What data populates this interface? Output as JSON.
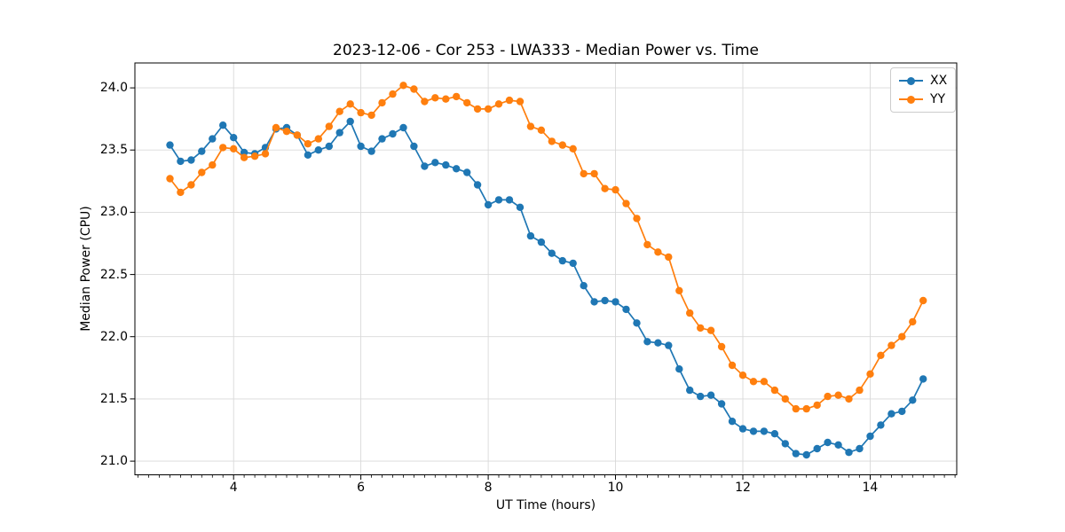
{
  "figure": {
    "background": "#ffffff",
    "text_color": "#000000",
    "grid_color": "#d9d9d9",
    "spine_color": "#000000"
  },
  "chart_data": {
    "type": "line",
    "title": "2023-12-06 - Cor 253 - LWA333 - Median Power vs. Time",
    "xlabel": "UT Time (hours)",
    "ylabel": "Median Power (CPU)",
    "xlim": [
      2.45,
      15.36
    ],
    "ylim": [
      20.89,
      24.2
    ],
    "xticks": [
      4,
      6,
      8,
      10,
      12,
      14
    ],
    "xtick_labels": [
      "4",
      "6",
      "8",
      "10",
      "12",
      "14"
    ],
    "yticks": [
      21.0,
      21.5,
      22.0,
      22.5,
      23.0,
      23.5,
      24.0
    ],
    "ytick_labels": [
      "21.0",
      "21.5",
      "22.0",
      "22.5",
      "23.0",
      "23.5",
      "24.0"
    ],
    "x_minor_step": 0.1666667,
    "grid": true,
    "legend_position": "upper right",
    "x_start": 3.0,
    "x_step": 0.1666667,
    "series": [
      {
        "name": "XX",
        "color": "#1f77b4",
        "marker": "circle",
        "values": [
          23.54,
          23.41,
          23.42,
          23.49,
          23.59,
          23.7,
          23.6,
          23.48,
          23.47,
          23.52,
          23.67,
          23.68,
          23.62,
          23.46,
          23.5,
          23.53,
          23.64,
          23.73,
          23.53,
          23.49,
          23.59,
          23.63,
          23.68,
          23.53,
          23.37,
          23.4,
          23.38,
          23.35,
          23.32,
          23.22,
          23.06,
          23.1,
          23.1,
          23.04,
          22.81,
          22.76,
          22.67,
          22.61,
          22.59,
          22.41,
          22.28,
          22.29,
          22.28,
          22.22,
          22.11,
          21.96,
          21.95,
          21.93,
          21.74,
          21.57,
          21.52,
          21.53,
          21.46,
          21.32,
          21.26,
          21.24,
          21.24,
          21.22,
          21.14,
          21.06,
          21.05,
          21.1,
          21.15,
          21.13,
          21.07,
          21.1,
          21.2,
          21.29,
          21.38,
          21.4,
          21.49,
          21.66
        ]
      },
      {
        "name": "YY",
        "color": "#ff7f0e",
        "marker": "circle",
        "values": [
          23.27,
          23.16,
          23.22,
          23.32,
          23.38,
          23.52,
          23.51,
          23.44,
          23.45,
          23.47,
          23.68,
          23.65,
          23.62,
          23.55,
          23.59,
          23.69,
          23.81,
          23.87,
          23.8,
          23.78,
          23.88,
          23.95,
          24.02,
          23.99,
          23.89,
          23.92,
          23.91,
          23.93,
          23.88,
          23.83,
          23.83,
          23.87,
          23.9,
          23.89,
          23.69,
          23.66,
          23.57,
          23.54,
          23.51,
          23.31,
          23.31,
          23.19,
          23.18,
          23.07,
          22.95,
          22.74,
          22.68,
          22.64,
          22.37,
          22.19,
          22.07,
          22.05,
          21.92,
          21.77,
          21.69,
          21.64,
          21.64,
          21.57,
          21.5,
          21.42,
          21.42,
          21.45,
          21.52,
          21.53,
          21.5,
          21.57,
          21.7,
          21.85,
          21.93,
          22.0,
          22.12,
          22.29
        ]
      }
    ]
  }
}
